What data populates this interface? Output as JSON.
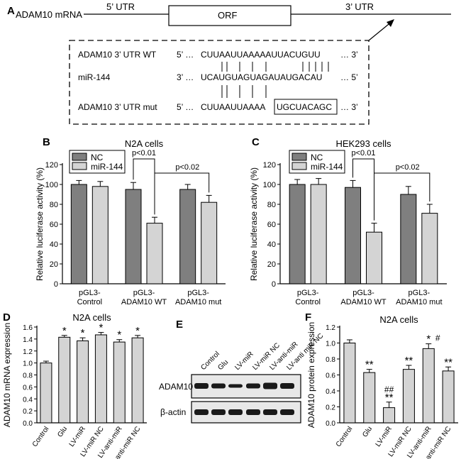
{
  "panelA": {
    "letter": "A",
    "gene_label": "ADAM10 mRNA",
    "utr5": "5’ UTR",
    "orf": "ORF",
    "utr3": "3’ UTR",
    "rows": [
      {
        "label": "ADAM10 3’ UTR  WT",
        "end_left": "5’ …",
        "seq": "CUUAAUUAAAAAUUACUGUU",
        "end_right": "… 3’"
      },
      {
        "label": "miR-144",
        "end_left": "3’ …",
        "seq": "UCAUGUAGUAGAUAUGACAU",
        "end_right": "… 5’"
      },
      {
        "label": "ADAM10 3’ UTR mut",
        "end_left": "5’ …",
        "seq_plain": "CUUAAUUAAAA",
        "seq_box": "UGCUACAGC",
        "end_right": "… 3’"
      }
    ]
  },
  "chart_data": [
    {
      "id": "B",
      "letter": "B",
      "type": "bar",
      "title": "N2A cells",
      "ylabel": "Relative luciferase activity (%)",
      "ylim": [
        0,
        120
      ],
      "yticks": [
        "0",
        "20",
        "40",
        "60",
        "80",
        "100",
        "120"
      ],
      "categories": [
        "pGL3-\nControl",
        "pGL3-\nADAM10 WT",
        "pGL3-\nADAM10 mut"
      ],
      "series": [
        {
          "name": "NC",
          "color": "#7f7f7f",
          "values": [
            100,
            95,
            95
          ],
          "errors": [
            4,
            7,
            5
          ]
        },
        {
          "name": "miR-144",
          "color": "#d4d4d4",
          "values": [
            98,
            61,
            82
          ],
          "errors": [
            5,
            6,
            7
          ]
        }
      ],
      "legend": "top-left",
      "annotations": [
        "p<0.01",
        "p<0.02"
      ]
    },
    {
      "id": "C",
      "letter": "C",
      "type": "bar",
      "title": "HEK293 cells",
      "ylabel": "Relative luciferase activity (%)",
      "ylim": [
        0,
        120
      ],
      "yticks": [
        "0",
        "20",
        "40",
        "60",
        "80",
        "100",
        "120"
      ],
      "categories": [
        "pGL3-\nControl",
        "pGL3-\nADAM10 WT",
        "pGL3-\nADAM10 mut"
      ],
      "series": [
        {
          "name": "NC",
          "color": "#7f7f7f",
          "values": [
            100,
            97,
            90
          ],
          "errors": [
            5,
            7,
            8
          ]
        },
        {
          "name": "miR-144",
          "color": "#d4d4d4",
          "values": [
            100,
            52,
            71
          ],
          "errors": [
            6,
            9,
            9
          ]
        }
      ],
      "legend": "top-left",
      "annotations": [
        "p<0.01",
        "p<0.02"
      ]
    },
    {
      "id": "D",
      "letter": "D",
      "type": "bar",
      "title": "N2A cells",
      "ylabel": "ADAM10 mRNA expression",
      "ylim": [
        0,
        1.6
      ],
      "yticks": [
        "0.0",
        "0.2",
        "0.4",
        "0.6",
        "0.8",
        "1.0",
        "1.2",
        "1.4",
        "1.6"
      ],
      "categories": [
        "Control",
        "Glu",
        "LV-miR",
        "LV-miR NC",
        "LV-anti-miR",
        "LV-anti-miR NC"
      ],
      "series": [
        {
          "name": "",
          "color": "#d4d4d4",
          "values": [
            1.0,
            1.43,
            1.37,
            1.47,
            1.35,
            1.42
          ],
          "errors": [
            0.03,
            0.03,
            0.05,
            0.04,
            0.04,
            0.04
          ]
        }
      ],
      "marks": [
        "",
        "*",
        "*",
        "*",
        "*",
        "*"
      ]
    },
    {
      "id": "F",
      "letter": "F",
      "type": "bar",
      "title": "N2A cells",
      "ylabel": "ADAM10 protein expression",
      "ylim": [
        0,
        1.2
      ],
      "yticks": [
        "0.0",
        "0.2",
        "0.4",
        "0.6",
        "0.8",
        "1.0",
        "1.2"
      ],
      "categories": [
        "Control",
        "Glu",
        "LV-miR",
        "LV-miR NC",
        "LV-anti-miR",
        "LV-anti-miR NC"
      ],
      "series": [
        {
          "name": "",
          "color": "#d4d4d4",
          "values": [
            1.0,
            0.63,
            0.19,
            0.67,
            0.93,
            0.65
          ],
          "errors": [
            0.04,
            0.04,
            0.07,
            0.05,
            0.06,
            0.05
          ]
        }
      ],
      "marks": [
        "",
        "**",
        "**",
        "**",
        "*",
        "**"
      ],
      "marks2": [
        "",
        "",
        "##",
        "",
        "#",
        ""
      ]
    }
  ],
  "panelE": {
    "letter": "E",
    "lanes": [
      "Control",
      "Glu",
      "LV-miR",
      "LV-miR NC",
      "LV-anti-miR",
      "LV-anti miR NC"
    ],
    "band_labels": [
      "ADAM10",
      "β-actin"
    ]
  },
  "colors": {
    "dark_bar": "#7f7f7f",
    "light_bar": "#d4d4d4",
    "band": "#1a1a1a",
    "blot_bg": "#e8e8e8"
  }
}
